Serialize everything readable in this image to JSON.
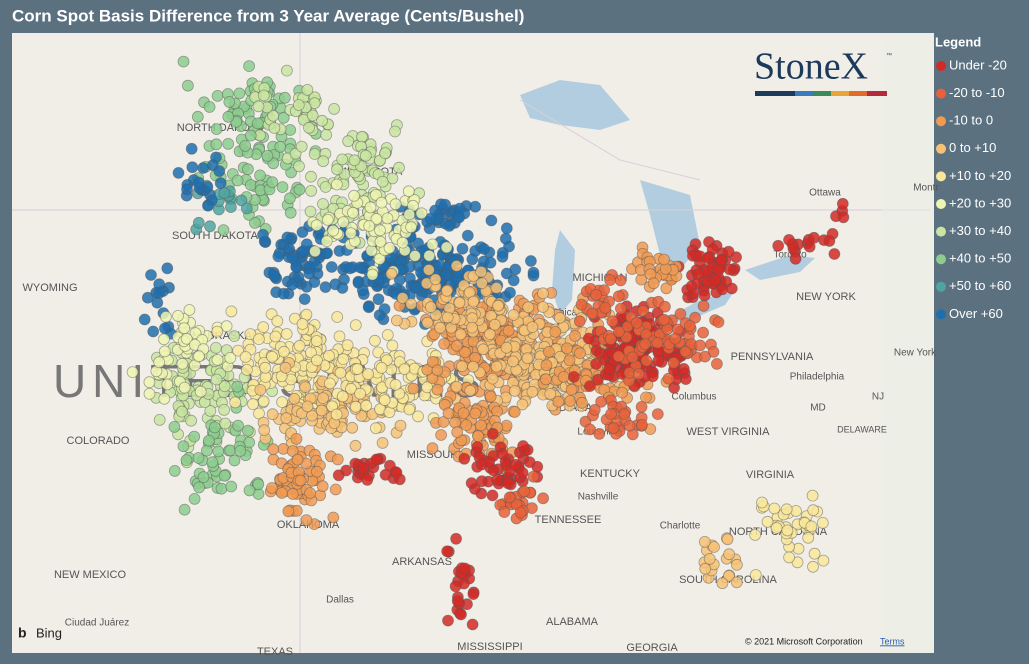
{
  "title": "Corn Spot Basis Difference from 3 Year Average (Cents/Bushel)",
  "logo": {
    "name": "StoneX",
    "mark": "™"
  },
  "legend": {
    "title": "Legend",
    "items": [
      {
        "label": "Under -20",
        "color": "#d42a26"
      },
      {
        "label": "-20 to -10",
        "color": "#e8613a"
      },
      {
        "label": "-10 to 0",
        "color": "#f09a52"
      },
      {
        "label": "0 to +10",
        "color": "#f6c277"
      },
      {
        "label": "+10 to +20",
        "color": "#f9e79a"
      },
      {
        "label": "+20 to +30",
        "color": "#eef4b2"
      },
      {
        "label": "+30 to +40",
        "color": "#c9e5a1"
      },
      {
        "label": "+40 to +50",
        "color": "#8dcc8e"
      },
      {
        "label": "+50 to +60",
        "color": "#4fa4a1"
      },
      {
        "label": "Over +60",
        "color": "#1f6fae"
      }
    ]
  },
  "map_labels": [
    "NORTH DAKOTA",
    "SOUTH DAKOTA",
    "MINNESOTA",
    "WYOMING",
    "NEBRASKA",
    "COLORADO",
    "MISSOURI",
    "KENTUCKY",
    "TENNESSEE",
    "OKLAHOMA",
    "ARKANSAS",
    "NEW MEXICO",
    "MISSISSIPPI",
    "ALABAMA",
    "GEORGIA",
    "TEXAS",
    "VIRGINIA",
    "WEST VIRGINIA",
    "NORTH CAROLINA",
    "SOUTH CAROLINA",
    "PENNSYLVANIA",
    "NEW YORK",
    "INDIANA",
    "MICHIGAN",
    "Ottawa",
    "Toronto",
    "Chicago",
    "Louisville",
    "Nashville",
    "Columbus",
    "Philadelphia",
    "New York",
    "Dallas",
    "Ciudad Juárez",
    "Charlotte",
    "MD",
    "NJ",
    "DELAWARE",
    "UNITED STATES",
    "Montr"
  ],
  "attribution": {
    "provider": "Bing",
    "copyright": "© 2021 Microsoft Corporation",
    "terms": "Terms"
  }
}
